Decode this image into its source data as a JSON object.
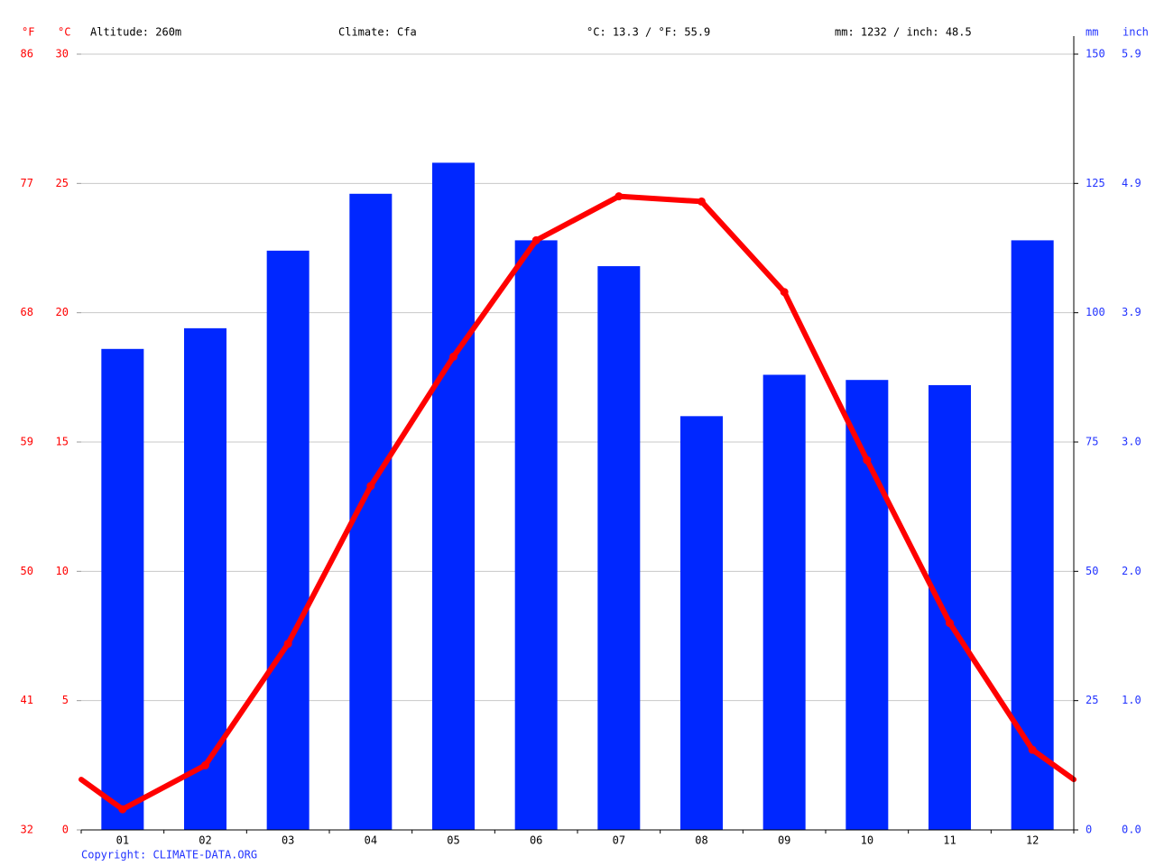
{
  "chart_data": {
    "type": "bar",
    "annotations": [
      "Altitude: 260m",
      "Climate: Cfa",
      "°C: 13.3 / °F: 55.9",
      "mm: 1232 / inch: 48.5"
    ],
    "y_unit_label": "°C",
    "y3_unit_label": "°F",
    "y2_unit_label": "mm",
    "y4_unit_label": "inch",
    "categories": [
      "01",
      "02",
      "03",
      "04",
      "05",
      "06",
      "07",
      "08",
      "09",
      "10",
      "11",
      "12"
    ],
    "series": [
      {
        "type": "bar",
        "axis": "y2",
        "color": "#0027ff",
        "values": [
          93,
          97,
          112,
          123,
          129,
          114,
          109,
          80,
          88,
          87,
          86,
          114
        ]
      },
      {
        "type": "line",
        "color": "#ff0000",
        "values": [
          0.8,
          2.5,
          7.2,
          13.3,
          18.3,
          22.8,
          24.5,
          24.3,
          20.8,
          14.3,
          8.0,
          3.1
        ]
      }
    ],
    "ylim": [
      0,
      30
    ],
    "yticks": [
      0,
      5,
      10,
      15,
      20,
      25,
      30
    ],
    "y3lim": [
      32,
      86
    ],
    "y3ticks": [
      32,
      41,
      50,
      59,
      68,
      77,
      86
    ],
    "y2lim": [
      0,
      150
    ],
    "y2ticks": [
      0,
      25,
      50,
      75,
      100,
      125,
      150
    ],
    "y4lim": [
      0,
      5.906
    ],
    "y4ticks": [
      {
        "value": 0,
        "label": "0.0"
      },
      {
        "value": 0.984,
        "label": "1.0"
      },
      {
        "value": 1.969,
        "label": "2.0"
      },
      {
        "value": 2.953,
        "label": "3.0"
      },
      {
        "value": 3.937,
        "label": "3.9"
      },
      {
        "value": 4.921,
        "label": "4.9"
      },
      {
        "value": 5.906,
        "label": "5.9"
      }
    ],
    "grid": true,
    "copyright": "Copyright: CLIMATE-DATA.ORG"
  }
}
